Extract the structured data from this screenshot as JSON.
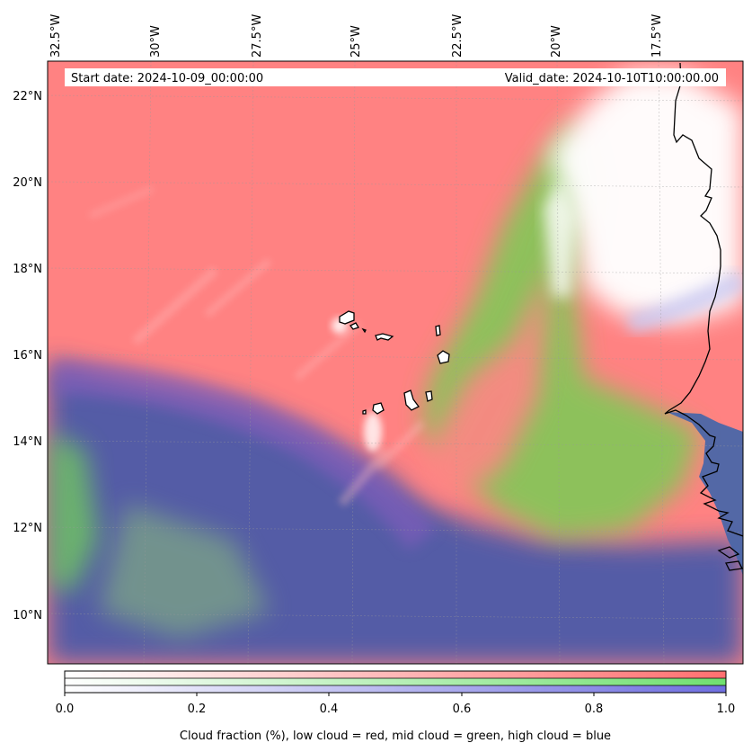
{
  "header": {
    "start_date": "Start date: 2024-10-09_00:00:00",
    "valid_date": "Valid_date: 2024-10-10T10:00:00.00"
  },
  "longitude_labels": [
    "32.5°W",
    "30°W",
    "27.5°W",
    "25°W",
    "22.5°W",
    "20°W",
    "17.5°W"
  ],
  "latitude_labels": [
    "22°N",
    "20°N",
    "18°N",
    "16°N",
    "14°N",
    "12°N",
    "10°N"
  ],
  "colorbar": {
    "ticks": [
      "0.0",
      "0.2",
      "0.4",
      "0.6",
      "0.8",
      "1.0"
    ],
    "label": "Cloud fraction (%), low cloud = red, mid cloud = green, high cloud = blue",
    "colors": {
      "low": "#ff7878",
      "mid": "#78e878",
      "high": "#7878e8"
    }
  },
  "colors": {
    "low_cloud": "#ff8080",
    "mid_cloud": "#7fd46a",
    "high_cloud": "#4a5fb0",
    "clear": "#ffffff",
    "coastline": "#000000"
  }
}
